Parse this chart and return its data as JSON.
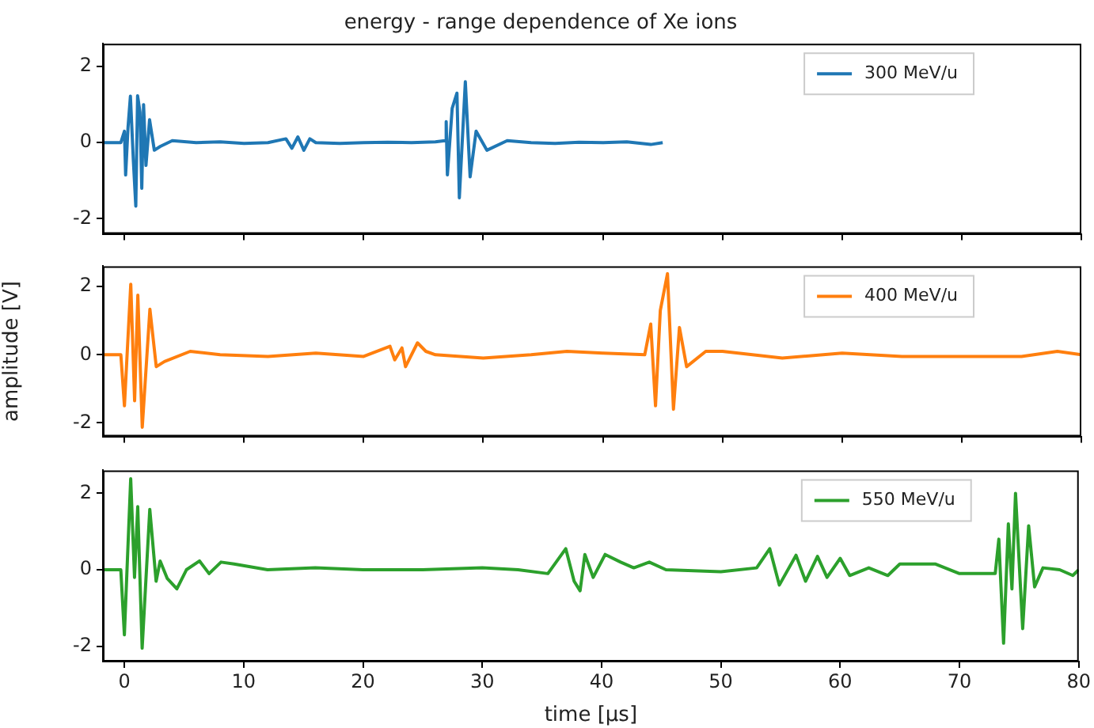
{
  "chart_data": [
    {
      "type": "line",
      "title": "energy - range dependence of Xe ions",
      "legend": "top right",
      "grid": false,
      "tick_labels": "y",
      "xlim": [
        -1.8,
        80
      ],
      "xticks": [
        0,
        10,
        20,
        30,
        40,
        50,
        60,
        70,
        80
      ],
      "ylim": [
        -2.4,
        2.6
      ],
      "yticks": [
        -2,
        0,
        2
      ],
      "series": [
        {
          "name": "300 MeV/u",
          "color": "#1f77b4",
          "x": [
            -1.8,
            -0.3,
            0,
            0.1,
            0.3,
            0.5,
            0.75,
            0.95,
            1.1,
            1.3,
            1.45,
            1.6,
            1.8,
            2.1,
            2.5,
            3,
            4,
            6,
            8,
            10,
            12,
            13.5,
            14,
            14.5,
            15,
            15.5,
            16,
            18,
            20,
            22,
            24,
            26,
            26.8,
            26.9,
            27.0,
            27.4,
            27.8,
            28.0,
            28.5,
            28.9,
            29.4,
            30.3,
            32,
            34,
            36,
            38,
            40,
            42,
            44,
            45
          ],
          "values": [
            0,
            0,
            0.3,
            -0.85,
            0.4,
            1.22,
            -0.5,
            -1.67,
            1.23,
            0.8,
            -1.2,
            1.0,
            -0.6,
            0.6,
            -0.2,
            -0.1,
            0.05,
            0,
            0.02,
            -0.02,
            0,
            0.1,
            -0.15,
            0.15,
            -0.2,
            0.1,
            0,
            -0.02,
            0,
            0.01,
            0,
            0.02,
            0.05,
            0.55,
            -0.85,
            0.9,
            1.3,
            -1.45,
            1.6,
            -0.9,
            0.3,
            -0.2,
            0.05,
            0,
            -0.02,
            0.01,
            0,
            0.02,
            -0.05,
            0
          ]
        }
      ]
    },
    {
      "type": "line",
      "ylabel": "amplitude [V]",
      "legend": "top right",
      "grid": false,
      "tick_labels": "y",
      "xlim": [
        -1.8,
        80
      ],
      "xticks": [
        0,
        10,
        20,
        30,
        40,
        50,
        60,
        70,
        80
      ],
      "ylim": [
        -2.4,
        2.6
      ],
      "yticks": [
        -2,
        0,
        2
      ],
      "series": [
        {
          "name": "400 MeV/u",
          "color": "#ff7f0e",
          "x": [
            -1.8,
            -0.3,
            0,
            0.53,
            0.85,
            1.12,
            1.49,
            2.13,
            2.66,
            3.35,
            5.5,
            8,
            12,
            16,
            20,
            22.2,
            22.6,
            23.2,
            23.5,
            24.5,
            25.2,
            26,
            30,
            34,
            37,
            40,
            43.5,
            44.0,
            44.4,
            44.8,
            45.4,
            45.9,
            46.4,
            47,
            48.6,
            50,
            55,
            60,
            65,
            70,
            75,
            78,
            80
          ],
          "values": [
            0,
            0,
            -1.5,
            2.07,
            -1.35,
            1.75,
            -2.13,
            1.34,
            -0.35,
            -0.2,
            0.1,
            0,
            -0.05,
            0.05,
            -0.05,
            0.25,
            -0.15,
            0.2,
            -0.35,
            0.35,
            0.1,
            0,
            -0.1,
            0,
            0.1,
            0.05,
            0,
            0.9,
            -1.5,
            1.3,
            2.38,
            -1.6,
            0.8,
            -0.35,
            0.1,
            0.1,
            -0.1,
            0.05,
            -0.05,
            -0.05,
            -0.05,
            0.1,
            0
          ]
        }
      ]
    },
    {
      "type": "line",
      "xlabel": "time [μs]",
      "legend": "top right",
      "grid": false,
      "xlim": [
        -1.8,
        80
      ],
      "xticks": [
        0,
        10,
        20,
        30,
        40,
        50,
        60,
        70,
        80
      ],
      "ylim": [
        -2.4,
        2.6
      ],
      "yticks": [
        -2,
        0,
        2
      ],
      "series": [
        {
          "name": "550 MeV/u",
          "color": "#2ca02c",
          "x": [
            -1.8,
            -0.3,
            0,
            0.53,
            0.85,
            1.12,
            1.49,
            2.13,
            2.66,
            3.0,
            3.6,
            4.4,
            5.2,
            6.3,
            7.1,
            8.1,
            9.2,
            12,
            16,
            20,
            25,
            30,
            33,
            35.5,
            37.0,
            37.7,
            38.2,
            38.6,
            39.3,
            40.3,
            41.6,
            42.7,
            44,
            45.4,
            50,
            53,
            54.1,
            54.9,
            56.3,
            57.1,
            58.1,
            58.9,
            60,
            60.8,
            62.4,
            64,
            65,
            68,
            70,
            73,
            73.3,
            73.7,
            74.1,
            74.4,
            74.7,
            75.3,
            75.8,
            76.3,
            77.0,
            78.4,
            79.5,
            80
          ],
          "values": [
            0,
            0,
            -1.7,
            2.38,
            -0.2,
            1.65,
            -2.05,
            1.58,
            -0.3,
            0.23,
            -0.23,
            -0.5,
            0,
            0.23,
            -0.1,
            0.2,
            0.15,
            0,
            0.05,
            0,
            0,
            0.05,
            0,
            -0.1,
            0.55,
            -0.3,
            -0.55,
            0.4,
            -0.2,
            0.4,
            0.2,
            0.05,
            0.2,
            0,
            -0.05,
            0.05,
            0.55,
            -0.4,
            0.38,
            -0.3,
            0.35,
            -0.2,
            0.3,
            -0.15,
            0.05,
            -0.15,
            0.15,
            0.15,
            -0.1,
            -0.1,
            0.8,
            -1.92,
            1.2,
            -0.5,
            2.0,
            -1.54,
            1.15,
            -0.45,
            0.05,
            0,
            -0.15,
            0
          ]
        }
      ]
    }
  ]
}
